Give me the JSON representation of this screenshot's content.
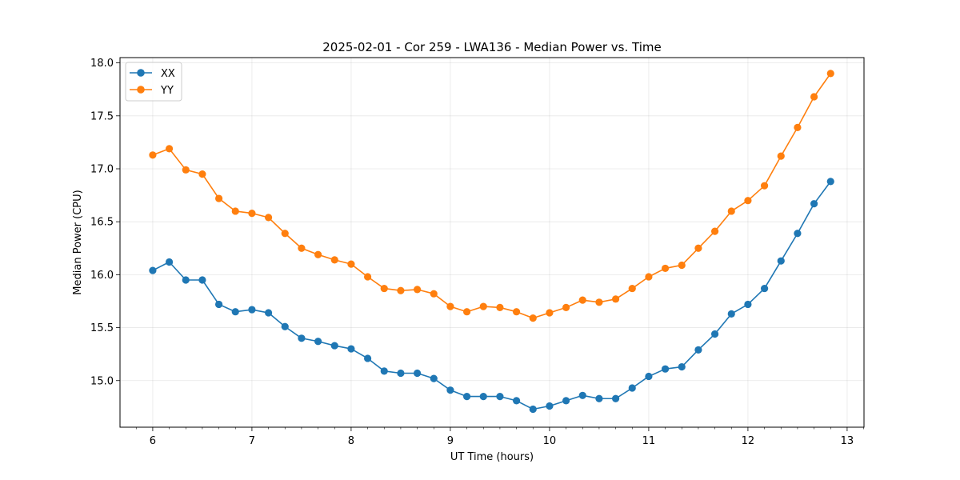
{
  "chart_data": {
    "type": "line",
    "title": "2025-02-01 - Cor 259 - LWA136 - Median Power vs. Time",
    "xlabel": "UT Time (hours)",
    "ylabel": "Median Power (CPU)",
    "xlim": [
      5.67,
      13.17
    ],
    "ylim": [
      14.56,
      18.05
    ],
    "xticks": [
      6,
      7,
      8,
      9,
      10,
      11,
      12,
      13
    ],
    "yticks": [
      15.0,
      15.5,
      16.0,
      16.5,
      17.0,
      17.5,
      18.0
    ],
    "xtick_labels": [
      "6",
      "7",
      "8",
      "9",
      "10",
      "11",
      "12",
      "13"
    ],
    "ytick_labels": [
      "15.0",
      "15.5",
      "16.0",
      "16.5",
      "17.0",
      "17.5",
      "18.0"
    ],
    "grid": true,
    "legend_position": "top-left",
    "x": [
      6.0,
      6.1667,
      6.3333,
      6.5,
      6.6667,
      6.8333,
      7.0,
      7.1667,
      7.3333,
      7.5,
      7.6667,
      7.8333,
      8.0,
      8.1667,
      8.3333,
      8.5,
      8.6667,
      8.8333,
      9.0,
      9.1667,
      9.3333,
      9.5,
      9.6667,
      9.8333,
      10.0,
      10.1667,
      10.3333,
      10.5,
      10.6667,
      10.8333,
      11.0,
      11.1667,
      11.3333,
      11.5,
      11.6667,
      11.8333,
      12.0,
      12.1667,
      12.3333,
      12.5,
      12.6667,
      12.8333
    ],
    "series": [
      {
        "name": "XX",
        "color": "#1f77b4",
        "values": [
          16.04,
          16.12,
          15.95,
          15.95,
          15.72,
          15.65,
          15.67,
          15.64,
          15.51,
          15.4,
          15.37,
          15.33,
          15.3,
          15.21,
          15.09,
          15.07,
          15.07,
          15.02,
          14.91,
          14.85,
          14.85,
          14.85,
          14.81,
          14.73,
          14.76,
          14.81,
          14.86,
          14.83,
          14.83,
          14.93,
          15.04,
          15.11,
          15.13,
          15.29,
          15.44,
          15.63,
          15.72,
          15.87,
          16.13,
          16.39,
          16.67,
          16.88
        ]
      },
      {
        "name": "YY",
        "color": "#ff7f0e",
        "values": [
          17.13,
          17.19,
          16.99,
          16.95,
          16.72,
          16.6,
          16.58,
          16.54,
          16.39,
          16.25,
          16.19,
          16.14,
          16.1,
          15.98,
          15.87,
          15.85,
          15.86,
          15.82,
          15.7,
          15.65,
          15.7,
          15.69,
          15.65,
          15.59,
          15.64,
          15.69,
          15.76,
          15.74,
          15.77,
          15.87,
          15.98,
          16.06,
          16.09,
          16.25,
          16.41,
          16.6,
          16.7,
          16.84,
          17.12,
          17.39,
          17.68,
          17.9
        ]
      }
    ]
  }
}
